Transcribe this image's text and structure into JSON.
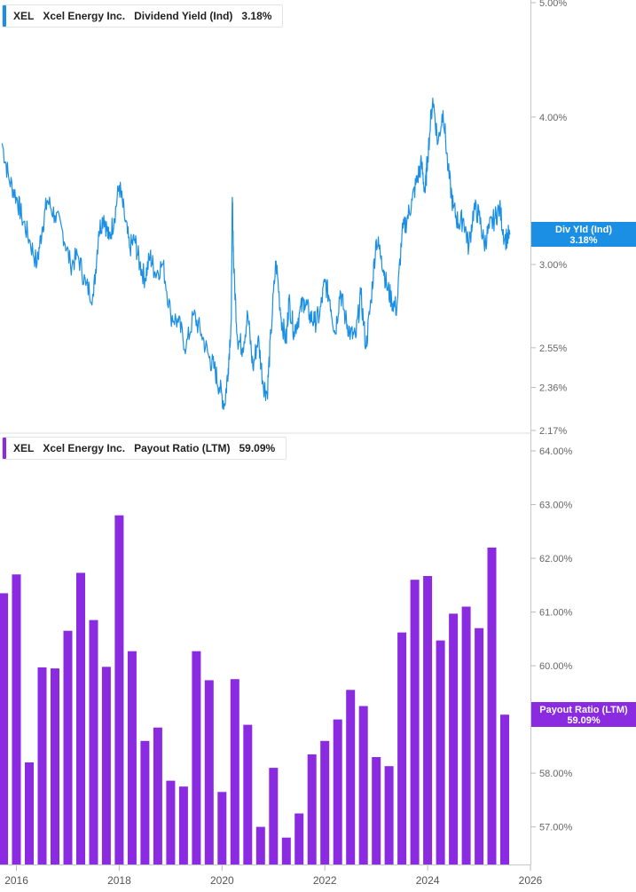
{
  "chart_data": [
    {
      "type": "line",
      "legend": {
        "ticker": "XEL",
        "company": "Xcel Energy Inc.",
        "metric": "Dividend Yield (Ind)",
        "value": "3.18%"
      },
      "y_axis_ticks": [
        "5.00%",
        "4.00%",
        "3.00%",
        "2.55%",
        "2.36%",
        "2.17%"
      ],
      "y_tick_values": [
        5.0,
        4.0,
        3.0,
        2.55,
        2.36,
        2.17
      ],
      "ylim": [
        2.17,
        5.0
      ],
      "scale": "log",
      "color": "#1a8fe3",
      "badge": {
        "label": "Div Yld (Ind)",
        "value": "3.18%",
        "y": 3.18
      },
      "series": [
        {
          "x": [
            2015.72,
            2015.85,
            2016.0,
            2016.1,
            2016.25,
            2016.4,
            2016.5,
            2016.6,
            2016.75,
            2016.9,
            2017.05,
            2017.2,
            2017.35,
            2017.5,
            2017.6,
            2017.7,
            2017.8,
            2017.9,
            2018.0,
            2018.1,
            2018.2,
            2018.3,
            2018.4,
            2018.5,
            2018.6,
            2018.7,
            2018.85,
            2019.0,
            2019.15,
            2019.3,
            2019.45,
            2019.6,
            2019.75,
            2019.85,
            2019.95,
            2020.05,
            2020.12,
            2020.18,
            2020.2,
            2020.23,
            2020.3,
            2020.4,
            2020.5,
            2020.6,
            2020.7,
            2020.8,
            2020.88,
            2020.95,
            2021.05,
            2021.15,
            2021.25,
            2021.3,
            2021.4,
            2021.5,
            2021.6,
            2021.7,
            2021.8,
            2021.9,
            2022.0,
            2022.1,
            2022.2,
            2022.3,
            2022.4,
            2022.5,
            2022.6,
            2022.7,
            2022.8,
            2022.9,
            2023.0,
            2023.1,
            2023.2,
            2023.3,
            2023.4,
            2023.5,
            2023.6,
            2023.7,
            2023.8,
            2023.88,
            2023.95,
            2024.0,
            2024.1,
            2024.2,
            2024.3,
            2024.4,
            2024.5,
            2024.6,
            2024.7,
            2024.8,
            2024.9,
            2025.0,
            2025.1,
            2025.2,
            2025.3,
            2025.4,
            2025.5,
            2025.6
          ],
          "y": [
            3.8,
            3.55,
            3.42,
            3.3,
            3.15,
            3.0,
            3.22,
            3.4,
            3.3,
            3.2,
            3.0,
            3.05,
            2.88,
            2.82,
            3.2,
            3.3,
            3.15,
            3.28,
            3.5,
            3.3,
            3.1,
            3.15,
            3.0,
            2.92,
            3.05,
            2.95,
            3.0,
            2.72,
            2.68,
            2.55,
            2.72,
            2.62,
            2.5,
            2.45,
            2.36,
            2.28,
            2.45,
            2.7,
            3.42,
            2.95,
            2.6,
            2.55,
            2.72,
            2.45,
            2.6,
            2.38,
            2.33,
            2.62,
            3.02,
            2.7,
            2.58,
            2.8,
            2.63,
            2.72,
            2.8,
            2.72,
            2.68,
            2.72,
            2.9,
            2.8,
            2.62,
            2.85,
            2.7,
            2.62,
            2.6,
            2.83,
            2.55,
            2.8,
            3.15,
            3.05,
            2.88,
            2.8,
            2.75,
            3.18,
            3.28,
            3.4,
            3.55,
            3.65,
            3.45,
            3.7,
            4.15,
            3.8,
            4.05,
            3.6,
            3.35,
            3.25,
            3.28,
            3.1,
            3.35,
            3.3,
            3.12,
            3.22,
            3.28,
            3.35,
            3.15,
            3.18
          ]
        }
      ]
    },
    {
      "type": "bar",
      "legend": {
        "ticker": "XEL",
        "company": "Xcel Energy Inc.",
        "metric": "Payout Ratio (LTM)",
        "value": "59.09%"
      },
      "y_axis_ticks": [
        "64.00%",
        "63.00%",
        "62.00%",
        "61.00%",
        "60.00%",
        "59.00%",
        "58.00%",
        "57.00%"
      ],
      "y_tick_values": [
        64,
        63,
        62,
        61,
        60,
        59,
        58,
        57
      ],
      "ylim": [
        56.3,
        64.0
      ],
      "color": "#8a2be2",
      "badge": {
        "label": "Payout Ratio (LTM)",
        "value": "59.09%",
        "y": 59.09
      },
      "x_ticks": [
        "2016",
        "2018",
        "2020",
        "2022",
        "2024",
        "2026"
      ],
      "x_tick_values": [
        2016,
        2018,
        2020,
        2022,
        2024,
        2026
      ],
      "xlim": [
        2015.68,
        2026.0
      ],
      "series": [
        {
          "name": "Payout Ratio (LTM)",
          "x": [
            2015.75,
            2016.0,
            2016.25,
            2016.5,
            2016.75,
            2017.0,
            2017.25,
            2017.5,
            2017.75,
            2018.0,
            2018.25,
            2018.5,
            2018.75,
            2019.0,
            2019.25,
            2019.5,
            2019.75,
            2020.0,
            2020.25,
            2020.5,
            2020.75,
            2021.0,
            2021.25,
            2021.5,
            2021.75,
            2022.0,
            2022.25,
            2022.5,
            2022.75,
            2023.0,
            2023.25,
            2023.5,
            2023.75,
            2024.0,
            2024.25,
            2024.5,
            2024.75,
            2025.0,
            2025.25,
            2025.5
          ],
          "y": [
            61.35,
            61.7,
            58.2,
            59.97,
            59.95,
            60.65,
            61.73,
            60.85,
            59.98,
            62.8,
            60.27,
            58.6,
            58.85,
            57.86,
            57.75,
            60.27,
            59.73,
            57.65,
            59.75,
            58.9,
            57.0,
            58.1,
            56.8,
            57.25,
            58.35,
            58.6,
            59.0,
            59.55,
            59.25,
            58.3,
            58.13,
            60.62,
            61.6,
            61.67,
            60.47,
            60.97,
            61.1,
            60.7,
            62.2,
            59.09
          ]
        }
      ]
    }
  ]
}
